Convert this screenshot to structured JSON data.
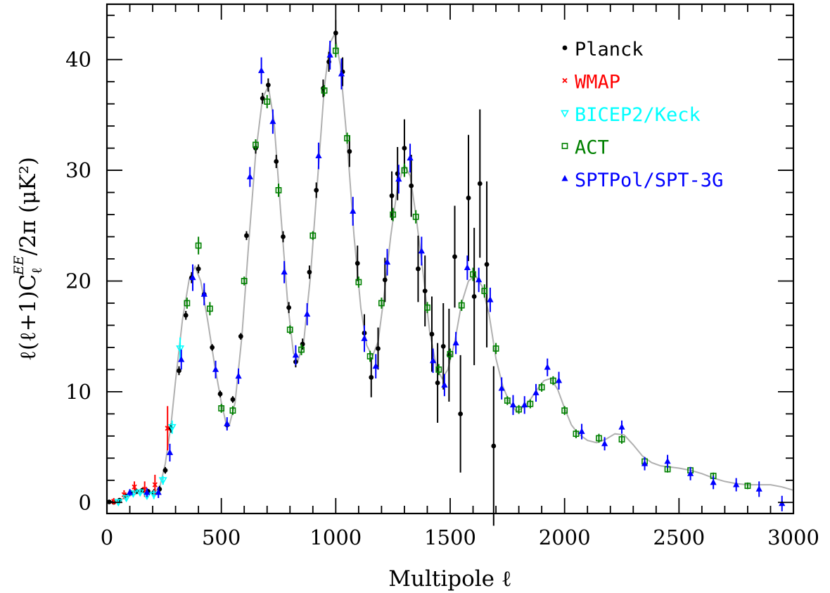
{
  "chart_data": {
    "type": "scatter",
    "title": "",
    "xlabel": "Multipole ℓ",
    "ylabel": "ℓ(ℓ+1)C_ℓ^EE/2π (μK²)",
    "ylabel_parts": {
      "prefix": "ℓ(ℓ+1)C",
      "sub": "ℓ",
      "sup": "EE",
      "suffix": "/2π (μK²)"
    },
    "xlim": [
      0,
      3000
    ],
    "ylim": [
      -1,
      45
    ],
    "xticks": [
      0,
      500,
      1000,
      1500,
      2000,
      2500,
      3000
    ],
    "yticks": [
      0,
      10,
      20,
      30,
      40
    ],
    "xtick_labels": [
      "0",
      "500",
      "1000",
      "1500",
      "2000",
      "2500",
      "3000"
    ],
    "ytick_labels": [
      "0",
      "10",
      "20",
      "30",
      "40"
    ],
    "legend_position": "top-right",
    "grid": false,
    "model_curve": {
      "color": "#b0b0b0",
      "points": [
        [
          2,
          0.05
        ],
        [
          30,
          0.05
        ],
        [
          60,
          0.25
        ],
        [
          100,
          0.6
        ],
        [
          150,
          0.9
        ],
        [
          200,
          0.85
        ],
        [
          230,
          1.3
        ],
        [
          255,
          3.5
        ],
        [
          280,
          7.0
        ],
        [
          300,
          11.0
        ],
        [
          330,
          16.5
        ],
        [
          360,
          20.2
        ],
        [
          385,
          21.3
        ],
        [
          410,
          20.0
        ],
        [
          440,
          16.5
        ],
        [
          470,
          12.5
        ],
        [
          500,
          9.0
        ],
        [
          520,
          7.2
        ],
        [
          535,
          7.0
        ],
        [
          560,
          9.0
        ],
        [
          590,
          15.0
        ],
        [
          620,
          23.5
        ],
        [
          650,
          31.5
        ],
        [
          680,
          36.5
        ],
        [
          705,
          37.6
        ],
        [
          730,
          34.5
        ],
        [
          760,
          26.0
        ],
        [
          790,
          18.0
        ],
        [
          815,
          13.5
        ],
        [
          835,
          12.8
        ],
        [
          860,
          14.5
        ],
        [
          890,
          20.5
        ],
        [
          920,
          29.0
        ],
        [
          950,
          37.5
        ],
        [
          975,
          41.5
        ],
        [
          995,
          42.3
        ],
        [
          1020,
          39.5
        ],
        [
          1050,
          32.5
        ],
        [
          1080,
          24.0
        ],
        [
          1110,
          17.5
        ],
        [
          1135,
          14.2
        ],
        [
          1160,
          13.2
        ],
        [
          1185,
          14.5
        ],
        [
          1210,
          18.5
        ],
        [
          1240,
          24.0
        ],
        [
          1270,
          28.5
        ],
        [
          1300,
          30.5
        ],
        [
          1325,
          29.5
        ],
        [
          1350,
          26.0
        ],
        [
          1380,
          21.0
        ],
        [
          1410,
          15.5
        ],
        [
          1440,
          12.2
        ],
        [
          1465,
          11.2
        ],
        [
          1490,
          12.0
        ],
        [
          1520,
          14.5
        ],
        [
          1550,
          18.0
        ],
        [
          1580,
          20.0
        ],
        [
          1610,
          20.5
        ],
        [
          1640,
          19.5
        ],
        [
          1670,
          17.0
        ],
        [
          1700,
          13.0
        ],
        [
          1730,
          10.5
        ],
        [
          1760,
          9.0
        ],
        [
          1790,
          8.2
        ],
        [
          1820,
          8.6
        ],
        [
          1850,
          9.3
        ],
        [
          1880,
          10.2
        ],
        [
          1910,
          11.0
        ],
        [
          1940,
          11.2
        ],
        [
          1970,
          10.2
        ],
        [
          2000,
          8.5
        ],
        [
          2030,
          7.0
        ],
        [
          2060,
          6.2
        ],
        [
          2100,
          5.6
        ],
        [
          2140,
          5.4
        ],
        [
          2180,
          5.7
        ],
        [
          2220,
          6.2
        ],
        [
          2260,
          6.1
        ],
        [
          2300,
          5.2
        ],
        [
          2340,
          4.2
        ],
        [
          2380,
          3.6
        ],
        [
          2420,
          3.3
        ],
        [
          2460,
          3.2
        ],
        [
          2500,
          3.1
        ],
        [
          2550,
          2.9
        ],
        [
          2600,
          2.6
        ],
        [
          2650,
          2.2
        ],
        [
          2700,
          1.9
        ],
        [
          2750,
          1.7
        ],
        [
          2800,
          1.6
        ],
        [
          2850,
          1.6
        ],
        [
          2900,
          1.6
        ],
        [
          2950,
          1.4
        ],
        [
          3000,
          1.1
        ]
      ]
    },
    "series": [
      {
        "name": "Planck",
        "color": "#000000",
        "marker": "dot",
        "points": [
          [
            10,
            0.05,
            0.1
          ],
          [
            30,
            0.02,
            0.1
          ],
          [
            55,
            0.2,
            0.1
          ],
          [
            80,
            0.6,
            0.2
          ],
          [
            105,
            0.9,
            0.2
          ],
          [
            130,
            1.0,
            0.2
          ],
          [
            155,
            1.1,
            0.2
          ],
          [
            180,
            1.0,
            0.2
          ],
          [
            205,
            0.9,
            0.3
          ],
          [
            230,
            1.2,
            0.3
          ],
          [
            255,
            2.9,
            0.3
          ],
          [
            280,
            6.7,
            0.4
          ],
          [
            315,
            11.9,
            0.4
          ],
          [
            345,
            16.9,
            0.4
          ],
          [
            370,
            20.3,
            0.5
          ],
          [
            400,
            21.1,
            0.4
          ],
          [
            425,
            18.8,
            0.4
          ],
          [
            460,
            14.0,
            0.3
          ],
          [
            495,
            9.8,
            0.3
          ],
          [
            525,
            7.0,
            0.3
          ],
          [
            550,
            9.3,
            0.3
          ],
          [
            585,
            15.0,
            0.3
          ],
          [
            610,
            24.1,
            0.4
          ],
          [
            650,
            32.0,
            0.5
          ],
          [
            680,
            36.5,
            0.5
          ],
          [
            705,
            37.7,
            0.6
          ],
          [
            740,
            30.8,
            0.6
          ],
          [
            770,
            24.0,
            0.5
          ],
          [
            795,
            17.6,
            0.5
          ],
          [
            825,
            12.7,
            0.5
          ],
          [
            855,
            14.3,
            0.5
          ],
          [
            885,
            20.8,
            0.6
          ],
          [
            915,
            28.2,
            0.7
          ],
          [
            945,
            37.4,
            0.8
          ],
          [
            970,
            39.8,
            0.9
          ],
          [
            1000,
            42.4,
            1.2
          ],
          [
            1030,
            38.9,
            1.3
          ],
          [
            1060,
            31.7,
            1.4
          ],
          [
            1095,
            21.6,
            1.6
          ],
          [
            1125,
            15.3,
            1.7
          ],
          [
            1155,
            11.3,
            1.8
          ],
          [
            1185,
            13.9,
            1.9
          ],
          [
            1215,
            20.1,
            2.0
          ],
          [
            1245,
            27.7,
            2.2
          ],
          [
            1270,
            29.7,
            2.4
          ],
          [
            1300,
            32.0,
            2.6
          ],
          [
            1330,
            28.6,
            2.8
          ],
          [
            1360,
            21.1,
            3.0
          ],
          [
            1390,
            19.1,
            3.2
          ],
          [
            1420,
            15.2,
            3.4
          ],
          [
            1445,
            10.8,
            3.6
          ],
          [
            1470,
            14.1,
            3.9
          ],
          [
            1495,
            13.3,
            4.2
          ],
          [
            1520,
            22.2,
            4.6
          ],
          [
            1545,
            8.0,
            5.3
          ],
          [
            1580,
            27.5,
            5.7
          ],
          [
            1605,
            18.6,
            6.2
          ],
          [
            1630,
            28.8,
            6.7
          ],
          [
            1660,
            21.5,
            7.5
          ],
          [
            1690,
            5.1,
            7.2
          ]
        ]
      },
      {
        "name": "WMAP",
        "color": "#ff0000",
        "marker": "cross",
        "points": [
          [
            30,
            0.1,
            0.3
          ],
          [
            75,
            0.7,
            0.4
          ],
          [
            120,
            1.4,
            0.5
          ],
          [
            165,
            1.2,
            0.7
          ],
          [
            210,
            1.6,
            0.9
          ],
          [
            265,
            6.7,
            2.0
          ]
        ]
      },
      {
        "name": "BICEP2/Keck",
        "color": "#00ffff",
        "marker": "tri-down",
        "points": [
          [
            50,
            0.02,
            0.2
          ],
          [
            85,
            0.4,
            0.2
          ],
          [
            115,
            0.8,
            0.2
          ],
          [
            145,
            0.9,
            0.3
          ],
          [
            175,
            0.6,
            0.3
          ],
          [
            205,
            0.7,
            0.4
          ],
          [
            245,
            2.0,
            0.4
          ],
          [
            285,
            6.8,
            0.6
          ],
          [
            320,
            13.9,
            1.0
          ]
        ]
      },
      {
        "name": "ACT",
        "color": "#008000",
        "marker": "square",
        "points": [
          [
            350,
            18.0,
            0.5
          ],
          [
            400,
            23.2,
            0.8
          ],
          [
            450,
            17.5,
            0.6
          ],
          [
            500,
            8.5,
            0.4
          ],
          [
            550,
            8.3,
            0.4
          ],
          [
            600,
            20.0,
            0.4
          ],
          [
            650,
            32.3,
            0.5
          ],
          [
            700,
            36.2,
            0.6
          ],
          [
            750,
            28.2,
            0.6
          ],
          [
            800,
            15.6,
            0.4
          ],
          [
            850,
            13.8,
            0.5
          ],
          [
            900,
            24.1,
            0.4
          ],
          [
            950,
            37.2,
            0.5
          ],
          [
            1000,
            40.8,
            0.6
          ],
          [
            1050,
            32.9,
            0.5
          ],
          [
            1100,
            19.9,
            0.5
          ],
          [
            1150,
            13.2,
            0.5
          ],
          [
            1200,
            18.0,
            0.5
          ],
          [
            1250,
            26.0,
            0.6
          ],
          [
            1300,
            30.0,
            0.6
          ],
          [
            1350,
            25.8,
            0.6
          ],
          [
            1400,
            17.6,
            0.5
          ],
          [
            1450,
            12.0,
            0.5
          ],
          [
            1500,
            13.4,
            0.5
          ],
          [
            1550,
            17.8,
            0.5
          ],
          [
            1600,
            20.6,
            0.6
          ],
          [
            1650,
            19.1,
            0.6
          ],
          [
            1700,
            13.9,
            0.5
          ],
          [
            1750,
            9.2,
            0.4
          ],
          [
            1800,
            8.4,
            0.4
          ],
          [
            1850,
            8.9,
            0.4
          ],
          [
            1900,
            10.4,
            0.4
          ],
          [
            1950,
            11.0,
            0.4
          ],
          [
            2000,
            8.3,
            0.4
          ],
          [
            2050,
            6.2,
            0.4
          ],
          [
            2150,
            5.8,
            0.4
          ],
          [
            2250,
            5.7,
            0.4
          ],
          [
            2350,
            3.7,
            0.3
          ],
          [
            2450,
            3.0,
            0.3
          ],
          [
            2550,
            2.9,
            0.3
          ],
          [
            2650,
            2.4,
            0.3
          ],
          [
            2800,
            1.5,
            0.3
          ]
        ]
      },
      {
        "name": "SPTPol/SPT-3G",
        "color": "#0000ff",
        "marker": "tri-up",
        "points": [
          [
            100,
            0.9,
            0.3
          ],
          [
            175,
            0.9,
            0.4
          ],
          [
            225,
            0.9,
            0.5
          ],
          [
            275,
            4.5,
            0.8
          ],
          [
            325,
            12.9,
            0.9
          ],
          [
            375,
            20.3,
            1.2
          ],
          [
            425,
            18.8,
            1.0
          ],
          [
            475,
            12.0,
            0.8
          ],
          [
            525,
            7.1,
            0.6
          ],
          [
            575,
            11.4,
            0.7
          ],
          [
            625,
            29.4,
            0.9
          ],
          [
            675,
            39.0,
            1.2
          ],
          [
            725,
            34.4,
            1.1
          ],
          [
            775,
            20.8,
            1.0
          ],
          [
            825,
            13.3,
            0.9
          ],
          [
            875,
            17.0,
            1.0
          ],
          [
            925,
            31.3,
            1.2
          ],
          [
            975,
            40.4,
            1.3
          ],
          [
            1025,
            38.7,
            1.4
          ],
          [
            1075,
            26.3,
            1.3
          ],
          [
            1125,
            14.8,
            1.2
          ],
          [
            1175,
            12.3,
            1.1
          ],
          [
            1225,
            21.7,
            1.2
          ],
          [
            1275,
            29.2,
            1.3
          ],
          [
            1325,
            31.1,
            1.3
          ],
          [
            1375,
            22.7,
            1.3
          ],
          [
            1425,
            12.8,
            1.1
          ],
          [
            1475,
            10.6,
            1.0
          ],
          [
            1525,
            14.4,
            1.0
          ],
          [
            1575,
            21.2,
            1.1
          ],
          [
            1625,
            20.1,
            1.1
          ],
          [
            1675,
            18.3,
            1.1
          ],
          [
            1725,
            10.3,
            1.0
          ],
          [
            1775,
            8.8,
            0.9
          ],
          [
            1825,
            8.8,
            0.8
          ],
          [
            1875,
            9.9,
            0.8
          ],
          [
            1925,
            12.2,
            0.8
          ],
          [
            1975,
            11.0,
            0.8
          ],
          [
            2075,
            6.4,
            0.7
          ],
          [
            2175,
            5.3,
            0.6
          ],
          [
            2250,
            6.8,
            0.6
          ],
          [
            2350,
            3.5,
            0.6
          ],
          [
            2450,
            3.7,
            0.6
          ],
          [
            2550,
            2.6,
            0.6
          ],
          [
            2650,
            1.8,
            0.6
          ],
          [
            2750,
            1.6,
            0.6
          ],
          [
            2850,
            1.2,
            0.7
          ],
          [
            2950,
            -0.1,
            0.7
          ]
        ]
      }
    ]
  }
}
